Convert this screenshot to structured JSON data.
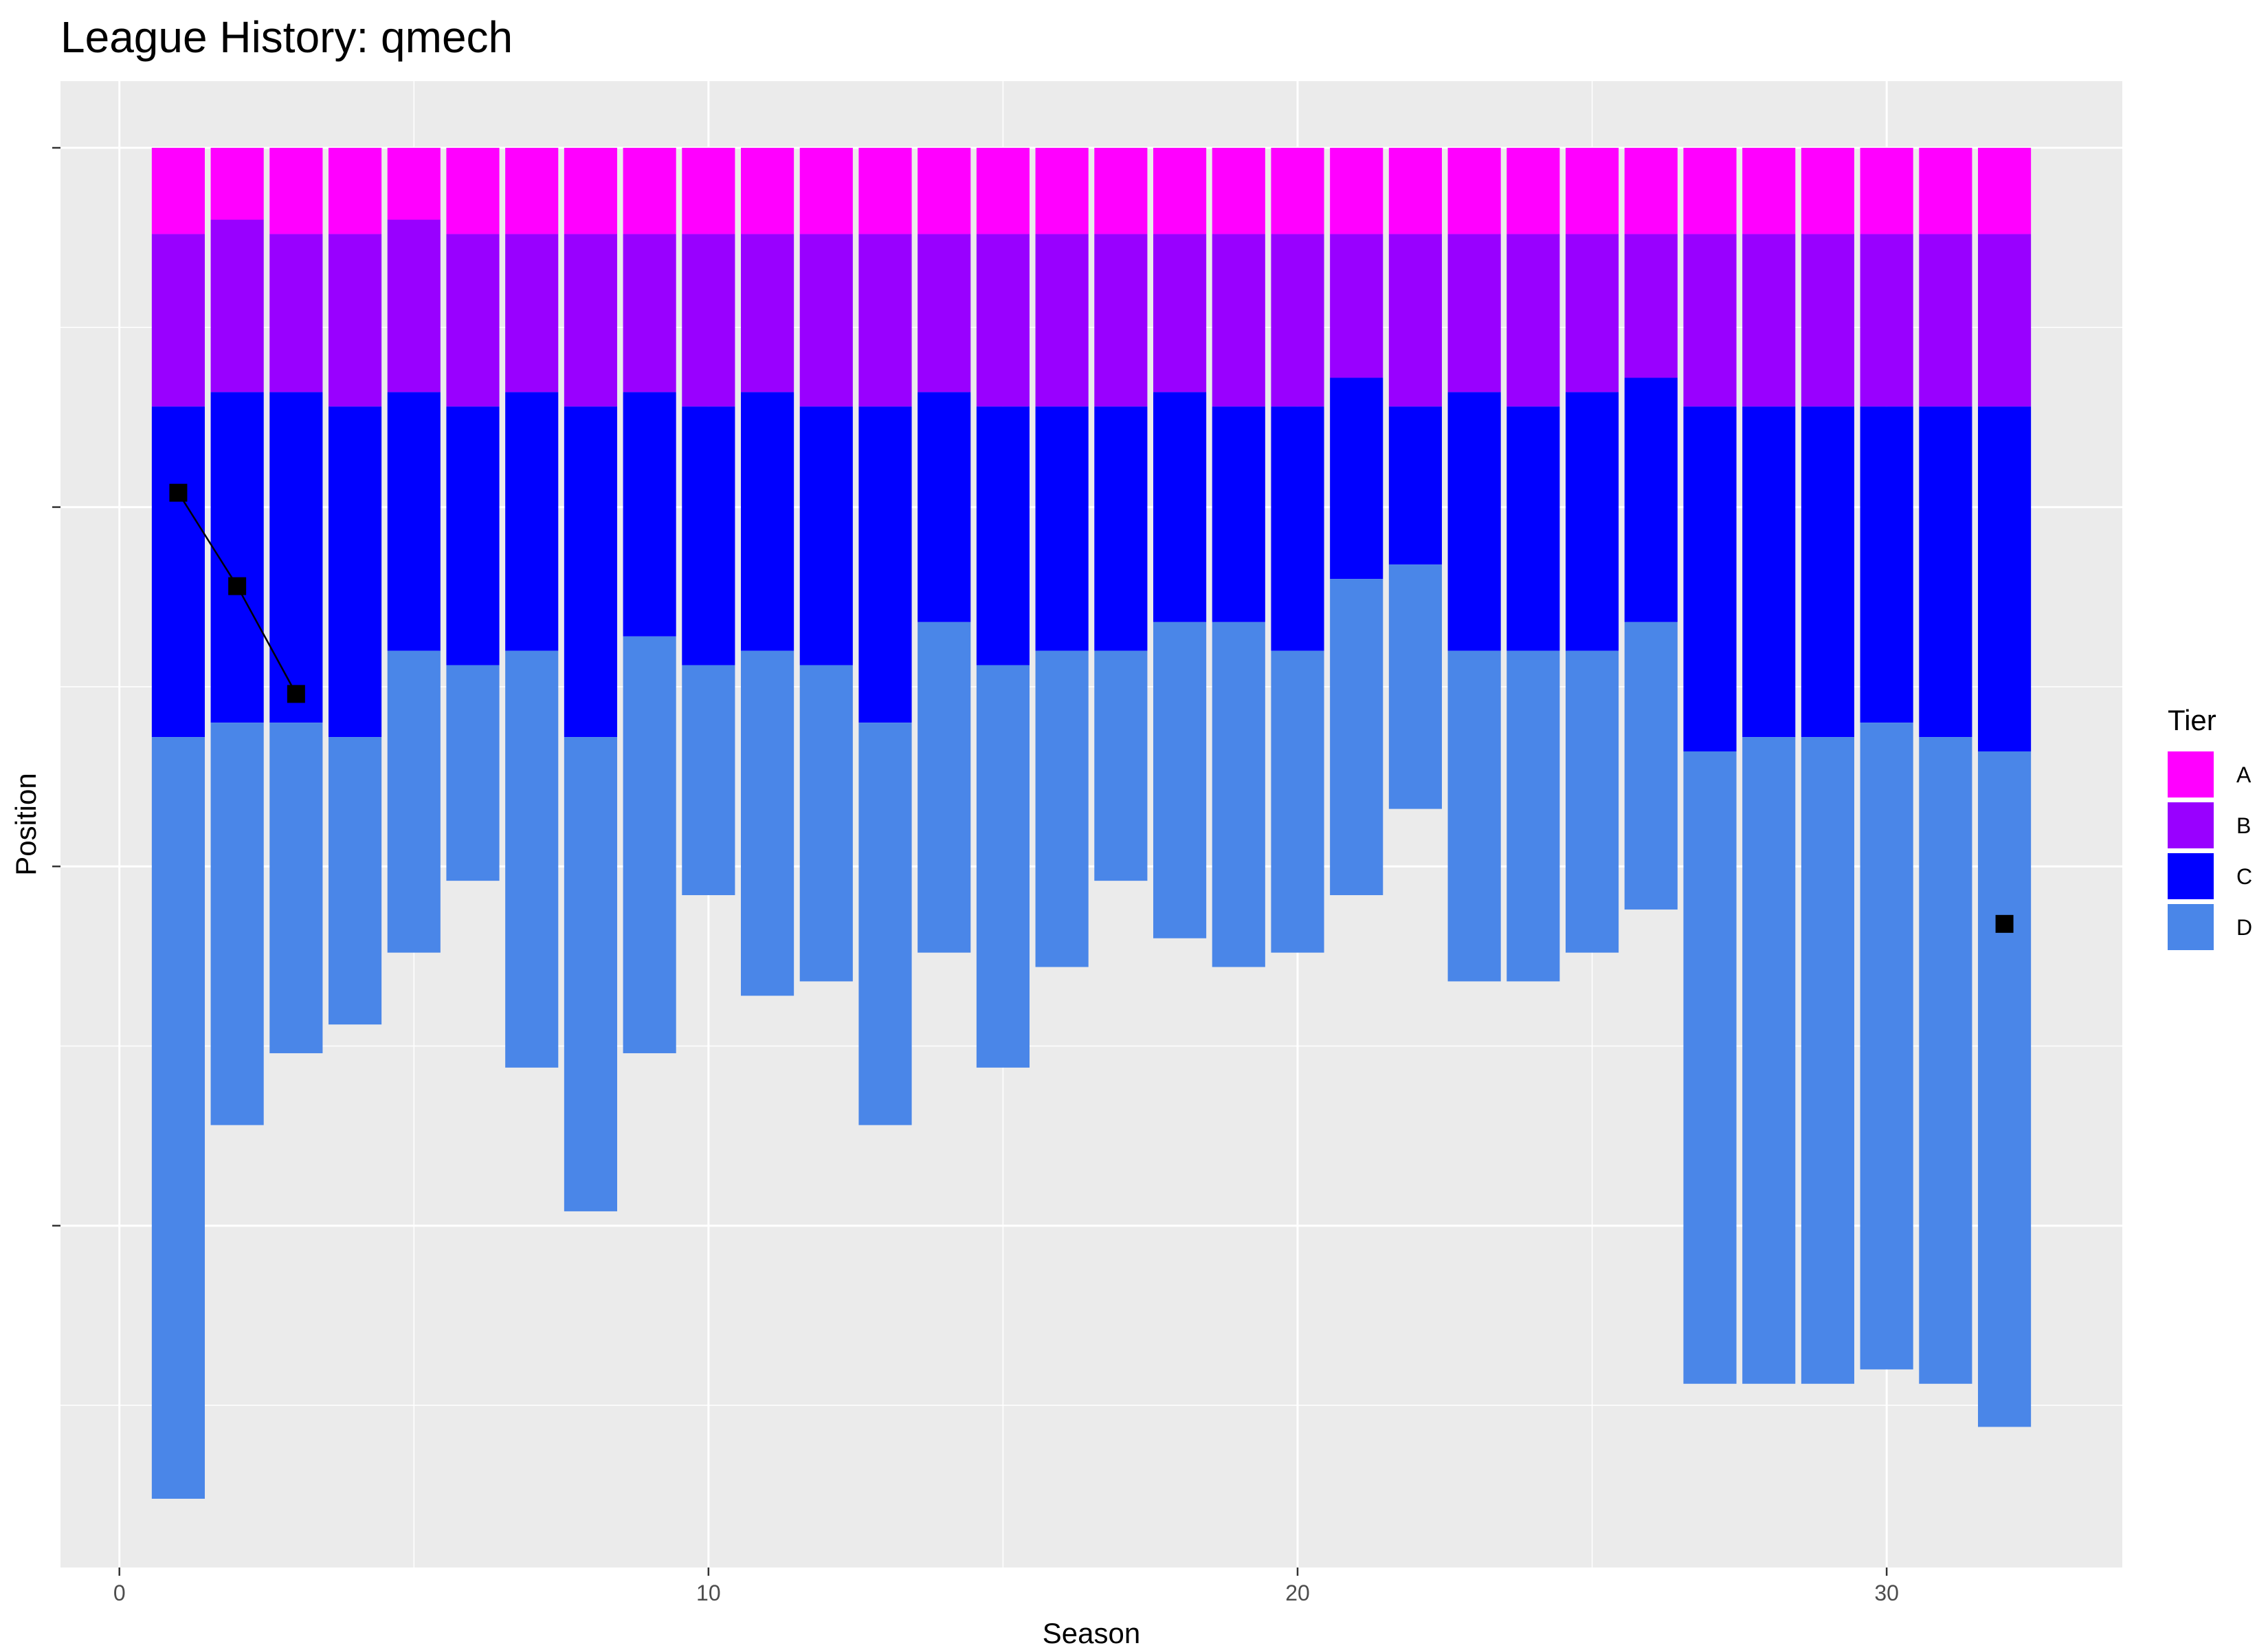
{
  "chart_data": {
    "type": "bar",
    "title": "League History: qmech",
    "xlabel": "Season",
    "ylabel": "Position",
    "x_ticks": [
      0,
      10,
      20,
      30
    ],
    "xlim": [
      -1,
      34
    ],
    "ylim": [
      95,
      0
    ],
    "grid": true,
    "legend": {
      "title": "Tier",
      "placement": "right",
      "entries": [
        "A",
        "B",
        "C",
        "D"
      ]
    },
    "tier_colors": {
      "A": "#FF00FF",
      "B": "#9900FF",
      "C": "#0000FF",
      "D": "#4A86E8"
    },
    "seasons": [
      1,
      2,
      3,
      4,
      5,
      6,
      7,
      8,
      9,
      10,
      11,
      12,
      13,
      14,
      15,
      16,
      17,
      18,
      19,
      20,
      21,
      22,
      23,
      24,
      25,
      26,
      27,
      28,
      29,
      30,
      31,
      32
    ],
    "tier_boundaries_note": "cumulative position at the bottom of each tier, per season",
    "tier_bottoms": {
      "A": [
        6,
        5,
        6,
        6,
        5,
        6,
        6,
        6,
        6,
        6,
        6,
        6,
        6,
        6,
        6,
        6,
        6,
        6,
        6,
        6,
        6,
        6,
        6,
        6,
        6,
        6,
        6,
        6,
        6,
        6,
        6,
        6
      ],
      "B": [
        18,
        17,
        17,
        18,
        17,
        18,
        17,
        18,
        17,
        18,
        17,
        18,
        18,
        17,
        18,
        18,
        18,
        17,
        18,
        18,
        16,
        18,
        17,
        18,
        17,
        16,
        18,
        18,
        18,
        18,
        18,
        18
      ],
      "C": [
        41,
        40,
        40,
        41,
        35,
        36,
        35,
        41,
        34,
        36,
        35,
        36,
        40,
        33,
        36,
        35,
        35,
        33,
        33,
        35,
        30,
        29,
        35,
        35,
        35,
        33,
        42,
        41,
        41,
        40,
        41,
        42
      ],
      "D": [
        94,
        68,
        63,
        61,
        56,
        51,
        64,
        74,
        63,
        52,
        59,
        58,
        68,
        56,
        64,
        57,
        51,
        55,
        57,
        56,
        52,
        46,
        58,
        58,
        56,
        53,
        86,
        86,
        86,
        85,
        86,
        89
      ]
    },
    "position_series": {
      "name": "",
      "points": [
        [
          1,
          24
        ],
        [
          2,
          30.5
        ],
        [
          3,
          38
        ]
      ],
      "isolated_points": [
        [
          32,
          54
        ]
      ]
    }
  }
}
